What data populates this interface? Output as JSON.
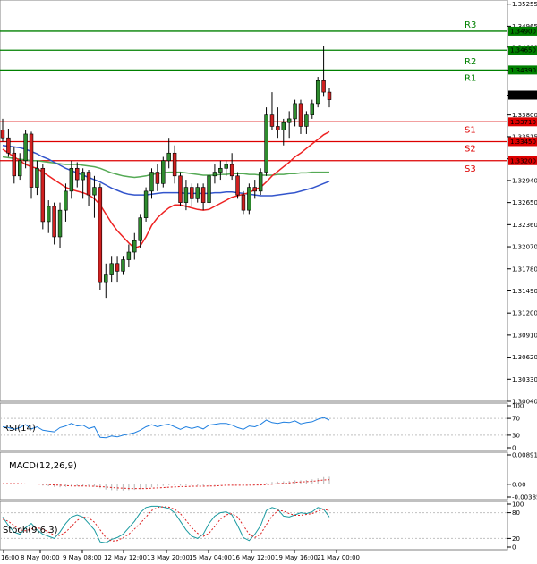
{
  "chart_data": {
    "type": "candlestick",
    "main_price_axis": {
      "ticks": [
        "1.35255",
        "1.34965",
        "1.34690",
        "1.34390",
        "1.34060",
        "1.33800",
        "1.33515",
        "1.33225",
        "1.32940",
        "1.32650",
        "1.32360",
        "1.32070",
        "1.31780",
        "1.31490",
        "1.31200",
        "1.30910",
        "1.30620",
        "1.30330",
        "1.30040"
      ],
      "range": [
        1.3004,
        1.3531
      ]
    },
    "time_axis": {
      "labels": [
        "16:00",
        "8 May 00:00",
        "9 May 08:00",
        "12 May 12:00",
        "13 May 20:00",
        "15 May 04:00",
        "16 May 12:00",
        "19 May 16:00",
        "21 May 00:00"
      ]
    },
    "levels": [
      {
        "name": "R3",
        "price": 1.349,
        "label": "1.34900",
        "color": "#008000"
      },
      {
        "name": "R2",
        "price": 1.3465,
        "label": "1.34650",
        "color": "#008000"
      },
      {
        "name": "R1",
        "price": 1.3439,
        "label": "1.34390",
        "color": "#008000"
      },
      {
        "name": "S1",
        "price": 1.3371,
        "label": "1.33710",
        "color": "#dd0000"
      },
      {
        "name": "S2",
        "price": 1.3345,
        "label": "1.33450",
        "color": "#dd0000"
      },
      {
        "name": "S3",
        "price": 1.332,
        "label": "1.33200",
        "color": "#dd0000"
      }
    ],
    "current_price": {
      "label": "1.34060",
      "price": 1.3406
    },
    "candles": [
      [
        1.336,
        1.3375,
        1.3345,
        1.335
      ],
      [
        1.335,
        1.3362,
        1.3325,
        1.333
      ],
      [
        1.333,
        1.3338,
        1.329,
        1.33
      ],
      [
        1.33,
        1.333,
        1.3295,
        1.332
      ],
      [
        1.332,
        1.336,
        1.331,
        1.3355
      ],
      [
        1.3355,
        1.3358,
        1.327,
        1.3285
      ],
      [
        1.3285,
        1.332,
        1.3275,
        1.331
      ],
      [
        1.331,
        1.3315,
        1.323,
        1.324
      ],
      [
        1.324,
        1.3268,
        1.3225,
        1.326
      ],
      [
        1.326,
        1.3265,
        1.321,
        1.322
      ],
      [
        1.322,
        1.3265,
        1.3205,
        1.3255
      ],
      [
        1.3255,
        1.329,
        1.324,
        1.328
      ],
      [
        1.328,
        1.332,
        1.327,
        1.331
      ],
      [
        1.331,
        1.3318,
        1.3285,
        1.3295
      ],
      [
        1.3295,
        1.331,
        1.327,
        1.3305
      ],
      [
        1.3305,
        1.3308,
        1.326,
        1.3275
      ],
      [
        1.3275,
        1.33,
        1.3245,
        1.3285
      ],
      [
        1.3285,
        1.329,
        1.315,
        1.316
      ],
      [
        1.316,
        1.3185,
        1.314,
        1.317
      ],
      [
        1.317,
        1.3195,
        1.316,
        1.3185
      ],
      [
        1.3185,
        1.3195,
        1.316,
        1.3175
      ],
      [
        1.3175,
        1.3195,
        1.317,
        1.319
      ],
      [
        1.319,
        1.321,
        1.318,
        1.32
      ],
      [
        1.32,
        1.3225,
        1.319,
        1.3215
      ],
      [
        1.3215,
        1.325,
        1.3205,
        1.3245
      ],
      [
        1.3245,
        1.3285,
        1.324,
        1.328
      ],
      [
        1.328,
        1.331,
        1.327,
        1.3305
      ],
      [
        1.3305,
        1.3315,
        1.328,
        1.329
      ],
      [
        1.329,
        1.3325,
        1.3285,
        1.332
      ],
      [
        1.332,
        1.335,
        1.331,
        1.333
      ],
      [
        1.333,
        1.334,
        1.329,
        1.33
      ],
      [
        1.33,
        1.3305,
        1.326,
        1.3265
      ],
      [
        1.3265,
        1.3295,
        1.3255,
        1.3285
      ],
      [
        1.3285,
        1.329,
        1.326,
        1.327
      ],
      [
        1.327,
        1.329,
        1.3265,
        1.3285
      ],
      [
        1.3285,
        1.329,
        1.3255,
        1.3265
      ],
      [
        1.3265,
        1.3305,
        1.326,
        1.33
      ],
      [
        1.33,
        1.3315,
        1.329,
        1.3305
      ],
      [
        1.3305,
        1.332,
        1.3295,
        1.331
      ],
      [
        1.331,
        1.332,
        1.33,
        1.3315
      ],
      [
        1.3315,
        1.333,
        1.3295,
        1.33
      ],
      [
        1.33,
        1.3305,
        1.327,
        1.3275
      ],
      [
        1.3275,
        1.328,
        1.325,
        1.3255
      ],
      [
        1.3255,
        1.329,
        1.325,
        1.3285
      ],
      [
        1.3285,
        1.3295,
        1.327,
        1.328
      ],
      [
        1.328,
        1.331,
        1.3275,
        1.3305
      ],
      [
        1.3305,
        1.339,
        1.33,
        1.338
      ],
      [
        1.338,
        1.341,
        1.336,
        1.3365
      ],
      [
        1.3365,
        1.339,
        1.335,
        1.336
      ],
      [
        1.336,
        1.3375,
        1.334,
        1.337
      ],
      [
        1.337,
        1.3385,
        1.335,
        1.3375
      ],
      [
        1.3375,
        1.34,
        1.3365,
        1.3395
      ],
      [
        1.3395,
        1.34,
        1.3355,
        1.3365
      ],
      [
        1.3365,
        1.3385,
        1.3355,
        1.338
      ],
      [
        1.338,
        1.34,
        1.3375,
        1.3395
      ],
      [
        1.3395,
        1.343,
        1.339,
        1.3425
      ],
      [
        1.3425,
        1.347,
        1.3405,
        1.341
      ],
      [
        1.341,
        1.3415,
        1.339,
        1.34
      ]
    ],
    "indicators": {
      "ma_red": [
        1.3335,
        1.333,
        1.3325,
        1.332,
        1.3315,
        1.3312,
        1.331,
        1.3305,
        1.33,
        1.3295,
        1.329,
        1.3285,
        1.3282,
        1.328,
        1.3278,
        1.3275,
        1.327,
        1.3262,
        1.325,
        1.3238,
        1.3228,
        1.322,
        1.3212,
        1.3205,
        1.3208,
        1.322,
        1.3235,
        1.3245,
        1.3252,
        1.3258,
        1.3262,
        1.3262,
        1.326,
        1.3258,
        1.3256,
        1.3255,
        1.3256,
        1.326,
        1.3264,
        1.3268,
        1.3272,
        1.3274,
        1.3276,
        1.3278,
        1.3282,
        1.3285,
        1.3292,
        1.33,
        1.3306,
        1.3312,
        1.3318,
        1.3325,
        1.333,
        1.3336,
        1.3342,
        1.3348,
        1.3354,
        1.3358
      ],
      "ma_green": [
        1.3325,
        1.3324,
        1.3323,
        1.3322,
        1.3321,
        1.332,
        1.332,
        1.3319,
        1.3318,
        1.3317,
        1.3316,
        1.3315,
        1.3315,
        1.3315,
        1.3314,
        1.3313,
        1.3312,
        1.331,
        1.3307,
        1.3304,
        1.3302,
        1.33,
        1.3299,
        1.3298,
        1.3299,
        1.33,
        1.3302,
        1.3303,
        1.3304,
        1.3305,
        1.3305,
        1.3305,
        1.3304,
        1.3303,
        1.3302,
        1.3301,
        1.3301,
        1.3301,
        1.3302,
        1.3302,
        1.3303,
        1.3303,
        1.3303,
        1.3302,
        1.3302,
        1.3301,
        1.3301,
        1.3301,
        1.3302,
        1.3302,
        1.3303,
        1.3303,
        1.3304,
        1.3304,
        1.3305,
        1.3305,
        1.3305,
        1.3305
      ],
      "ma_blue": [
        1.334,
        1.3339,
        1.3338,
        1.3337,
        1.3335,
        1.3332,
        1.3329,
        1.3325,
        1.3322,
        1.3318,
        1.3314,
        1.331,
        1.3307,
        1.3304,
        1.3301,
        1.3298,
        1.3295,
        1.3292,
        1.3288,
        1.3284,
        1.3281,
        1.3278,
        1.3276,
        1.3275,
        1.3275,
        1.3275,
        1.3276,
        1.3277,
        1.3278,
        1.3278,
        1.3278,
        1.3278,
        1.3277,
        1.3277,
        1.3277,
        1.3277,
        1.3277,
        1.3278,
        1.3278,
        1.3279,
        1.3279,
        1.3278,
        1.3277,
        1.3276,
        1.3275,
        1.3274,
        1.3274,
        1.3274,
        1.3275,
        1.3276,
        1.3277,
        1.3278,
        1.328,
        1.3282,
        1.3284,
        1.3287,
        1.329,
        1.3293
      ]
    },
    "rsi": {
      "title": "RSI(14)",
      "ticks": [
        "100",
        "70",
        "30",
        "0"
      ],
      "range": [
        0,
        100
      ],
      "values": [
        50,
        48,
        44,
        48,
        55,
        45,
        50,
        42,
        40,
        38,
        48,
        52,
        58,
        52,
        54,
        46,
        50,
        25,
        24,
        28,
        26,
        30,
        33,
        36,
        42,
        50,
        55,
        50,
        54,
        56,
        50,
        44,
        50,
        46,
        50,
        45,
        54,
        56,
        58,
        58,
        54,
        48,
        44,
        52,
        50,
        56,
        66,
        60,
        58,
        61,
        60,
        64,
        57,
        60,
        62,
        68,
        72,
        66
      ]
    },
    "macd": {
      "title": "MACD(12,26,9)",
      "ticks": [
        "0.008918",
        "0.00",
        "-0.003853"
      ],
      "range": [
        -0.003853,
        0.008918
      ],
      "histogram": [
        0.0002,
        0.0002,
        0.0001,
        0.0001,
        0.0001,
        0.0,
        0.0,
        -0.0004,
        -0.0006,
        -0.0008,
        -0.0009,
        -0.0008,
        -0.0006,
        -0.0006,
        -0.0006,
        -0.0007,
        -0.0007,
        -0.0012,
        -0.0016,
        -0.0018,
        -0.0019,
        -0.0019,
        -0.0018,
        -0.0017,
        -0.0015,
        -0.0012,
        -0.0009,
        -0.0007,
        -0.0005,
        -0.0003,
        -0.0003,
        -0.0004,
        -0.0004,
        -0.0004,
        -0.0004,
        -0.0004,
        -0.0003,
        -0.0002,
        -0.0001,
        0.0,
        0.0,
        -0.0001,
        -0.0002,
        -0.0002,
        -0.0001,
        0.0,
        0.0004,
        0.0007,
        0.0008,
        0.0009,
        0.001,
        0.0012,
        0.0012,
        0.0013,
        0.0015,
        0.0018,
        0.0022,
        0.0023
      ],
      "signal": [
        0.0002,
        0.0002,
        0.0002,
        0.0002,
        0.0001,
        0.0001,
        0.0001,
        0.0,
        -0.0001,
        -0.0002,
        -0.0003,
        -0.0004,
        -0.0005,
        -0.0005,
        -0.0005,
        -0.0006,
        -0.0006,
        -0.0007,
        -0.0008,
        -0.001,
        -0.0011,
        -0.0012,
        -0.0013,
        -0.0013,
        -0.0013,
        -0.0013,
        -0.0012,
        -0.0011,
        -0.001,
        -0.0009,
        -0.0008,
        -0.0007,
        -0.0007,
        -0.0006,
        -0.0006,
        -0.0006,
        -0.0005,
        -0.0005,
        -0.0004,
        -0.0003,
        -0.0003,
        -0.0003,
        -0.0003,
        -0.0003,
        -0.0002,
        -0.0002,
        -0.0001,
        0.0,
        0.0002,
        0.0003,
        0.0004,
        0.0006,
        0.0007,
        0.0008,
        0.0009,
        0.0011,
        0.0013,
        0.0014
      ]
    },
    "stoch": {
      "title": "Stoch(9,6,3)",
      "ticks": [
        "100",
        "80",
        "20",
        "0"
      ],
      "range": [
        0,
        100
      ],
      "k": [
        70,
        50,
        35,
        30,
        45,
        55,
        40,
        30,
        25,
        20,
        35,
        55,
        70,
        75,
        70,
        55,
        40,
        12,
        10,
        18,
        22,
        30,
        45,
        60,
        80,
        92,
        95,
        95,
        93,
        90,
        80,
        60,
        40,
        25,
        20,
        30,
        55,
        72,
        80,
        82,
        75,
        50,
        22,
        15,
        30,
        50,
        85,
        92,
        88,
        72,
        70,
        75,
        80,
        78,
        82,
        92,
        88,
        70
      ],
      "d": [
        65,
        60,
        50,
        40,
        38,
        42,
        45,
        42,
        35,
        28,
        27,
        35,
        48,
        62,
        70,
        68,
        58,
        40,
        22,
        14,
        15,
        22,
        30,
        42,
        55,
        70,
        85,
        92,
        94,
        93,
        88,
        78,
        62,
        45,
        32,
        25,
        32,
        48,
        65,
        75,
        78,
        70,
        50,
        30,
        22,
        30,
        52,
        72,
        85,
        84,
        78,
        74,
        74,
        76,
        78,
        84,
        88,
        85
      ]
    }
  }
}
